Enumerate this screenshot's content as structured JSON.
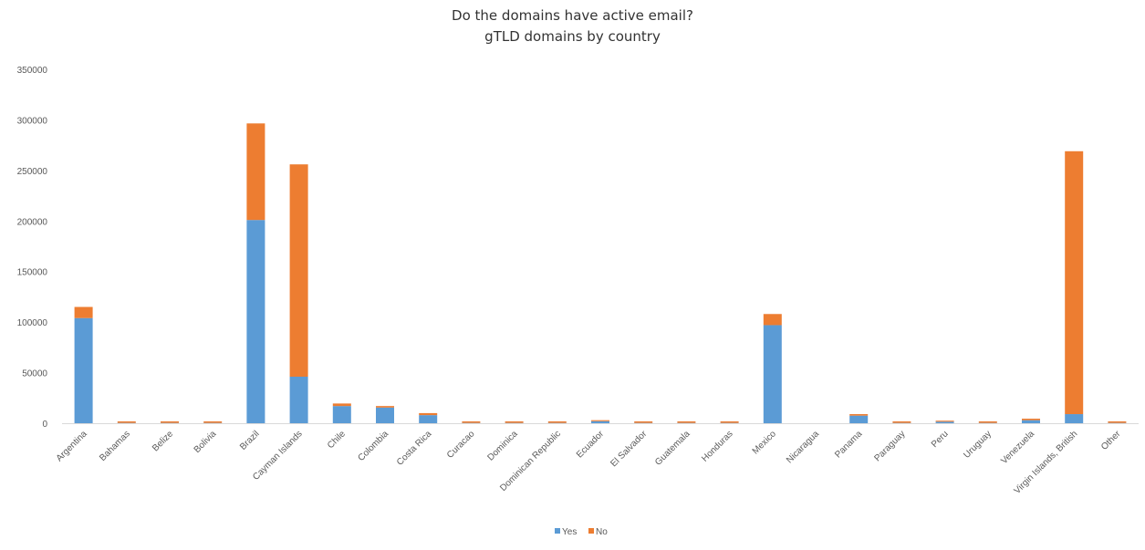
{
  "chart_data": {
    "type": "bar",
    "stacked": true,
    "title": "Do the domains have active email?",
    "subtitle": "gTLD domains by country",
    "xlabel": "",
    "ylabel": "",
    "ylim": [
      0,
      350000
    ],
    "yticks": [
      0,
      50000,
      100000,
      150000,
      200000,
      250000,
      300000,
      350000
    ],
    "grid": false,
    "legend_position": "bottom",
    "categories": [
      "Argentina",
      "Bahamas",
      "Belize",
      "Bolivia",
      "Brazil",
      "Cayman Islands",
      "Chile",
      "Colombia",
      "Costa Rica",
      "Curacao",
      "Dominica",
      "Dominican Republic",
      "Ecuador",
      "El Salvador",
      "Guatemala",
      "Honduras",
      "Mexico",
      "Nicaragua",
      "Panama",
      "Paraguay",
      "Peru",
      "Uruguay",
      "Venezuela",
      "Virgin Islands, British",
      "Other"
    ],
    "series": [
      {
        "name": "Yes",
        "color": "#5b9bd5",
        "values": [
          104000,
          300,
          300,
          300,
          201000,
          46000,
          17000,
          15500,
          8000,
          300,
          300,
          300,
          2000,
          300,
          300,
          300,
          97000,
          0,
          7500,
          300,
          1500,
          300,
          3000,
          9000,
          300
        ]
      },
      {
        "name": "No",
        "color": "#ed7d31",
        "values": [
          11000,
          1500,
          1500,
          1500,
          95500,
          210000,
          2500,
          1500,
          2000,
          1500,
          1500,
          1500,
          1000,
          1500,
          1500,
          1500,
          11000,
          0,
          1500,
          1500,
          1000,
          1500,
          1500,
          260000,
          1500
        ]
      }
    ]
  }
}
